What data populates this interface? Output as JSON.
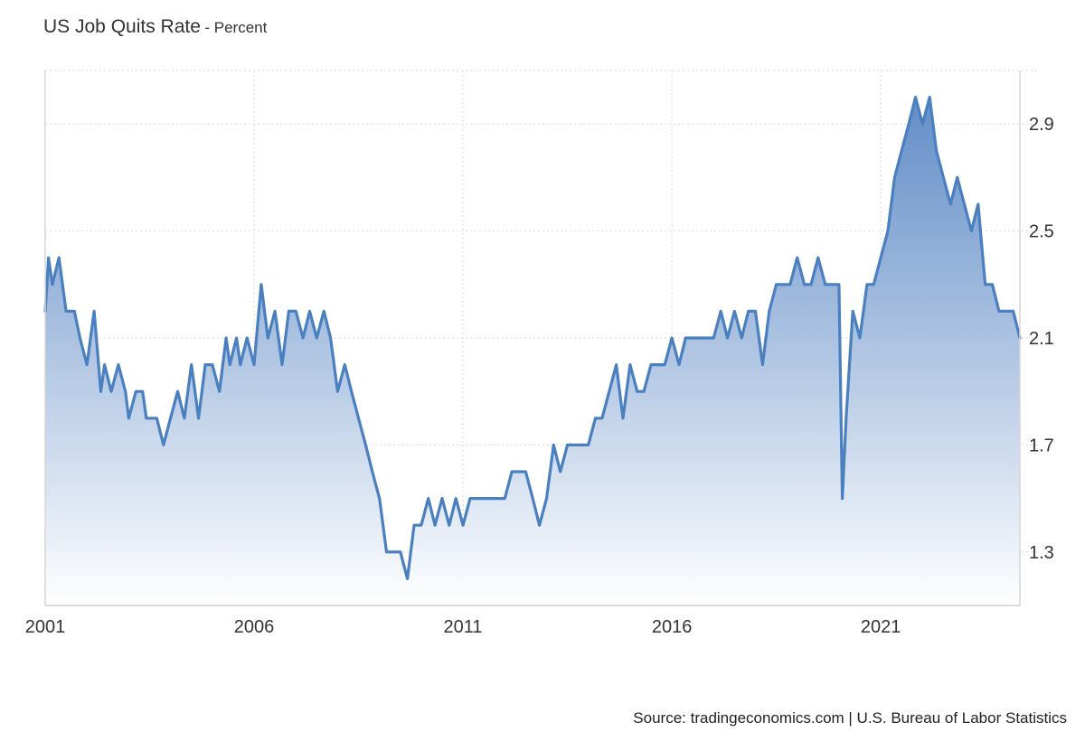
{
  "header": {
    "title": "US Job Quits Rate",
    "subtitle": "- Percent"
  },
  "footer": {
    "source": "Source: tradingeconomics.com | U.S. Bureau of Labor Statistics"
  },
  "colors": {
    "line": "#4a7fc0",
    "fill_top": "#5b88c5",
    "fill_bottom": "#ffffff",
    "grid": "#d9d9d9"
  },
  "chart_data": {
    "type": "area",
    "title": "US Job Quits Rate",
    "ylabel": "Percent",
    "xlabel": "",
    "xlim": [
      2001.0,
      2024.33
    ],
    "ylim": [
      1.1,
      3.1
    ],
    "x_ticks": [
      "2001",
      "2006",
      "2011",
      "2016",
      "2021"
    ],
    "y_ticks": [
      "1.3",
      "1.7",
      "2.1",
      "2.5",
      "2.9"
    ],
    "grid": true,
    "series": [
      {
        "name": "",
        "points": [
          [
            2001.0,
            2.2
          ],
          [
            2001.08,
            2.4
          ],
          [
            2001.17,
            2.3
          ],
          [
            2001.33,
            2.4
          ],
          [
            2001.5,
            2.2
          ],
          [
            2001.7,
            2.2
          ],
          [
            2001.83,
            2.1
          ],
          [
            2002.0,
            2.0
          ],
          [
            2002.17,
            2.2
          ],
          [
            2002.33,
            1.9
          ],
          [
            2002.42,
            2.0
          ],
          [
            2002.58,
            1.9
          ],
          [
            2002.75,
            2.0
          ],
          [
            2002.92,
            1.9
          ],
          [
            2003.0,
            1.8
          ],
          [
            2003.17,
            1.9
          ],
          [
            2003.33,
            1.9
          ],
          [
            2003.42,
            1.8
          ],
          [
            2003.67,
            1.8
          ],
          [
            2003.83,
            1.7
          ],
          [
            2004.0,
            1.8
          ],
          [
            2004.17,
            1.9
          ],
          [
            2004.33,
            1.8
          ],
          [
            2004.5,
            2.0
          ],
          [
            2004.67,
            1.8
          ],
          [
            2004.83,
            2.0
          ],
          [
            2005.0,
            2.0
          ],
          [
            2005.17,
            1.9
          ],
          [
            2005.33,
            2.1
          ],
          [
            2005.42,
            2.0
          ],
          [
            2005.58,
            2.1
          ],
          [
            2005.67,
            2.0
          ],
          [
            2005.83,
            2.1
          ],
          [
            2006.0,
            2.0
          ],
          [
            2006.17,
            2.3
          ],
          [
            2006.33,
            2.1
          ],
          [
            2006.5,
            2.2
          ],
          [
            2006.67,
            2.0
          ],
          [
            2006.83,
            2.2
          ],
          [
            2007.0,
            2.2
          ],
          [
            2007.17,
            2.1
          ],
          [
            2007.33,
            2.2
          ],
          [
            2007.5,
            2.1
          ],
          [
            2007.67,
            2.2
          ],
          [
            2007.83,
            2.1
          ],
          [
            2008.0,
            1.9
          ],
          [
            2008.17,
            2.0
          ],
          [
            2008.33,
            1.9
          ],
          [
            2008.5,
            1.8
          ],
          [
            2008.67,
            1.7
          ],
          [
            2008.83,
            1.6
          ],
          [
            2009.0,
            1.5
          ],
          [
            2009.17,
            1.3
          ],
          [
            2009.5,
            1.3
          ],
          [
            2009.67,
            1.2
          ],
          [
            2009.83,
            1.4
          ],
          [
            2010.0,
            1.4
          ],
          [
            2010.17,
            1.5
          ],
          [
            2010.33,
            1.4
          ],
          [
            2010.5,
            1.5
          ],
          [
            2010.67,
            1.4
          ],
          [
            2010.83,
            1.5
          ],
          [
            2011.0,
            1.4
          ],
          [
            2011.17,
            1.5
          ],
          [
            2011.5,
            1.5
          ],
          [
            2012.0,
            1.5
          ],
          [
            2012.17,
            1.6
          ],
          [
            2012.5,
            1.6
          ],
          [
            2012.67,
            1.5
          ],
          [
            2012.83,
            1.4
          ],
          [
            2013.0,
            1.5
          ],
          [
            2013.17,
            1.7
          ],
          [
            2013.33,
            1.6
          ],
          [
            2013.5,
            1.7
          ],
          [
            2013.67,
            1.7
          ],
          [
            2014.0,
            1.7
          ],
          [
            2014.17,
            1.8
          ],
          [
            2014.33,
            1.8
          ],
          [
            2014.5,
            1.9
          ],
          [
            2014.67,
            2.0
          ],
          [
            2014.83,
            1.8
          ],
          [
            2015.0,
            2.0
          ],
          [
            2015.17,
            1.9
          ],
          [
            2015.33,
            1.9
          ],
          [
            2015.5,
            2.0
          ],
          [
            2015.67,
            2.0
          ],
          [
            2015.83,
            2.0
          ],
          [
            2016.0,
            2.1
          ],
          [
            2016.17,
            2.0
          ],
          [
            2016.33,
            2.1
          ],
          [
            2016.67,
            2.1
          ],
          [
            2017.0,
            2.1
          ],
          [
            2017.17,
            2.2
          ],
          [
            2017.33,
            2.1
          ],
          [
            2017.5,
            2.2
          ],
          [
            2017.67,
            2.1
          ],
          [
            2017.83,
            2.2
          ],
          [
            2018.0,
            2.2
          ],
          [
            2018.17,
            2.0
          ],
          [
            2018.33,
            2.2
          ],
          [
            2018.5,
            2.3
          ],
          [
            2018.83,
            2.3
          ],
          [
            2019.0,
            2.4
          ],
          [
            2019.17,
            2.3
          ],
          [
            2019.33,
            2.3
          ],
          [
            2019.5,
            2.4
          ],
          [
            2019.67,
            2.3
          ],
          [
            2020.0,
            2.3
          ],
          [
            2020.08,
            1.5
          ],
          [
            2020.17,
            1.8
          ],
          [
            2020.33,
            2.2
          ],
          [
            2020.5,
            2.1
          ],
          [
            2020.67,
            2.3
          ],
          [
            2020.83,
            2.3
          ],
          [
            2021.0,
            2.4
          ],
          [
            2021.17,
            2.5
          ],
          [
            2021.33,
            2.7
          ],
          [
            2021.5,
            2.8
          ],
          [
            2021.67,
            2.9
          ],
          [
            2021.83,
            3.0
          ],
          [
            2022.0,
            2.9
          ],
          [
            2022.17,
            3.0
          ],
          [
            2022.33,
            2.8
          ],
          [
            2022.5,
            2.7
          ],
          [
            2022.67,
            2.6
          ],
          [
            2022.83,
            2.7
          ],
          [
            2023.0,
            2.6
          ],
          [
            2023.17,
            2.5
          ],
          [
            2023.33,
            2.6
          ],
          [
            2023.5,
            2.3
          ],
          [
            2023.67,
            2.3
          ],
          [
            2023.83,
            2.2
          ],
          [
            2024.0,
            2.2
          ],
          [
            2024.17,
            2.2
          ],
          [
            2024.33,
            2.1
          ]
        ]
      }
    ]
  }
}
